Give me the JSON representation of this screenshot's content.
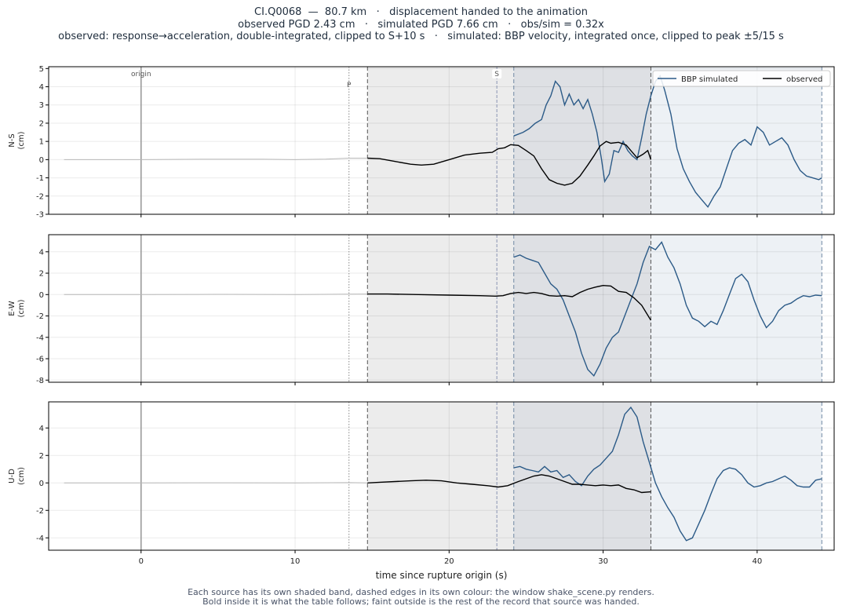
{
  "header": {
    "line1": "CI.Q0068  —  80.7 km   ·   displacement handed to the animation",
    "line2": "observed PGD 2.43 cm   ·   simulated PGD 7.66 cm   ·   obs/sim = 0.32x",
    "line3": "observed: response→acceleration, double-integrated, clipped to S+10 s   ·   simulated: BBP velocity, integrated once, clipped to peak ±5/15 s"
  },
  "footer": {
    "line1": "Each source has its own shaded band, dashed edges in its own colour: the window shake_scene.py renders.",
    "line2": "Bold inside it is what the table follows;   faint outside is the rest of the record that source was handed."
  },
  "colors": {
    "simulated": "#2b5a87",
    "observed": "#000000",
    "faint": "#b8b8b8",
    "obs_band": "#ececec",
    "sim_band": "#edf1f5",
    "overlap_band": "#dee0e4",
    "origin_line": "#9a9a9a"
  },
  "chart_data": {
    "type": "line",
    "xlabel": "time since rupture origin (s)",
    "xlim": [
      -6,
      45
    ],
    "xticks": [
      0,
      10,
      20,
      30,
      40
    ],
    "markers": [
      {
        "label": "origin",
        "t": 0
      },
      {
        "label": "P",
        "t": 13.5
      },
      {
        "label": "S",
        "t": 23.1
      }
    ],
    "observed_window": [
      14.7,
      33.1
    ],
    "simulated_window": [
      24.2,
      44.2
    ],
    "legend": {
      "position": "top-right",
      "entries": [
        "BBP simulated",
        "observed"
      ]
    },
    "grid": true,
    "panels": [
      {
        "ylabel": "N-S\n(cm)",
        "ylim": [
          -3,
          5.1
        ],
        "yticks": [
          -3,
          -2,
          -1,
          0,
          1,
          2,
          3,
          4,
          5
        ],
        "observed": [
          [
            -5,
            0
          ],
          [
            0,
            0
          ],
          [
            4,
            0.02
          ],
          [
            8,
            0.02
          ],
          [
            10,
            0
          ],
          [
            12,
            0.03
          ],
          [
            13.5,
            0.08
          ],
          [
            14.7,
            0.08
          ],
          [
            15.5,
            0.05
          ],
          [
            16.5,
            -0.1
          ],
          [
            17.5,
            -0.25
          ],
          [
            18.2,
            -0.3
          ],
          [
            19,
            -0.25
          ],
          [
            20,
            0
          ],
          [
            21,
            0.25
          ],
          [
            22,
            0.35
          ],
          [
            22.8,
            0.4
          ],
          [
            23.2,
            0.6
          ],
          [
            23.6,
            0.65
          ],
          [
            24,
            0.82
          ],
          [
            24.5,
            0.78
          ],
          [
            25,
            0.5
          ],
          [
            25.5,
            0.2
          ],
          [
            26,
            -0.5
          ],
          [
            26.5,
            -1.1
          ],
          [
            27,
            -1.3
          ],
          [
            27.5,
            -1.4
          ],
          [
            28,
            -1.3
          ],
          [
            28.5,
            -0.9
          ],
          [
            29,
            -0.3
          ],
          [
            29.4,
            0.2
          ],
          [
            29.8,
            0.75
          ],
          [
            30.2,
            1.0
          ],
          [
            30.5,
            0.9
          ],
          [
            31,
            0.95
          ],
          [
            31.5,
            0.8
          ],
          [
            31.8,
            0.5
          ],
          [
            32.2,
            0.1
          ],
          [
            32.6,
            0.3
          ],
          [
            32.9,
            0.5
          ],
          [
            33.1,
            0.0
          ]
        ],
        "simulated": [
          [
            24.2,
            1.3
          ],
          [
            24.8,
            1.5
          ],
          [
            25.2,
            1.7
          ],
          [
            25.6,
            2.0
          ],
          [
            26,
            2.2
          ],
          [
            26.3,
            3.0
          ],
          [
            26.6,
            3.5
          ],
          [
            26.9,
            4.3
          ],
          [
            27.2,
            4.0
          ],
          [
            27.5,
            3.0
          ],
          [
            27.8,
            3.6
          ],
          [
            28.1,
            3.0
          ],
          [
            28.4,
            3.3
          ],
          [
            28.7,
            2.8
          ],
          [
            29.0,
            3.3
          ],
          [
            29.3,
            2.5
          ],
          [
            29.6,
            1.5
          ],
          [
            29.9,
            0.0
          ],
          [
            30.1,
            -1.2
          ],
          [
            30.4,
            -0.8
          ],
          [
            30.7,
            0.5
          ],
          [
            31.0,
            0.4
          ],
          [
            31.3,
            1.0
          ],
          [
            31.6,
            0.5
          ],
          [
            31.9,
            0.2
          ],
          [
            32.2,
            0.0
          ],
          [
            32.5,
            1.2
          ],
          [
            32.8,
            2.5
          ],
          [
            33.1,
            3.5
          ],
          [
            33.4,
            4.3
          ],
          [
            33.7,
            4.6
          ],
          [
            34.0,
            3.8
          ],
          [
            34.4,
            2.5
          ],
          [
            34.8,
            0.6
          ],
          [
            35.2,
            -0.5
          ],
          [
            35.6,
            -1.2
          ],
          [
            36.0,
            -1.8
          ],
          [
            36.4,
            -2.2
          ],
          [
            36.8,
            -2.6
          ],
          [
            37.2,
            -2.0
          ],
          [
            37.6,
            -1.5
          ],
          [
            38.0,
            -0.5
          ],
          [
            38.4,
            0.5
          ],
          [
            38.8,
            0.9
          ],
          [
            39.2,
            1.1
          ],
          [
            39.6,
            0.8
          ],
          [
            40.0,
            1.8
          ],
          [
            40.4,
            1.5
          ],
          [
            40.8,
            0.8
          ],
          [
            41.2,
            1.0
          ],
          [
            41.6,
            1.2
          ],
          [
            42.0,
            0.8
          ],
          [
            42.4,
            0.0
          ],
          [
            42.8,
            -0.6
          ],
          [
            43.2,
            -0.9
          ],
          [
            43.6,
            -1.0
          ],
          [
            44.0,
            -1.1
          ],
          [
            44.2,
            -1.0
          ]
        ]
      },
      {
        "ylabel": "E-W\n(cm)",
        "ylim": [
          -8.2,
          5.6
        ],
        "yticks": [
          -8,
          -6,
          -4,
          -2,
          0,
          2,
          4
        ],
        "observed": [
          [
            -5,
            0
          ],
          [
            0,
            0
          ],
          [
            5,
            0.02
          ],
          [
            10,
            0
          ],
          [
            13.5,
            0.04
          ],
          [
            14.7,
            0.05
          ],
          [
            16,
            0.05
          ],
          [
            18,
            0.0
          ],
          [
            20,
            -0.05
          ],
          [
            22,
            -0.1
          ],
          [
            23,
            -0.15
          ],
          [
            23.5,
            -0.1
          ],
          [
            24,
            0.1
          ],
          [
            24.5,
            0.2
          ],
          [
            25,
            0.1
          ],
          [
            25.5,
            0.2
          ],
          [
            26,
            0.1
          ],
          [
            26.5,
            -0.1
          ],
          [
            27,
            -0.15
          ],
          [
            27.5,
            -0.1
          ],
          [
            28,
            -0.2
          ],
          [
            28.5,
            0.2
          ],
          [
            29,
            0.5
          ],
          [
            29.5,
            0.7
          ],
          [
            30,
            0.85
          ],
          [
            30.5,
            0.8
          ],
          [
            31,
            0.3
          ],
          [
            31.5,
            0.2
          ],
          [
            32,
            -0.3
          ],
          [
            32.5,
            -1.0
          ],
          [
            33.1,
            -2.4
          ]
        ],
        "simulated": [
          [
            24.2,
            3.5
          ],
          [
            24.6,
            3.7
          ],
          [
            25,
            3.4
          ],
          [
            25.4,
            3.2
          ],
          [
            25.8,
            3.0
          ],
          [
            26.2,
            2.0
          ],
          [
            26.6,
            1.0
          ],
          [
            27.0,
            0.5
          ],
          [
            27.4,
            -0.5
          ],
          [
            27.8,
            -2.0
          ],
          [
            28.2,
            -3.5
          ],
          [
            28.6,
            -5.5
          ],
          [
            29.0,
            -7.0
          ],
          [
            29.4,
            -7.6
          ],
          [
            29.8,
            -6.5
          ],
          [
            30.2,
            -5.0
          ],
          [
            30.6,
            -4.0
          ],
          [
            31.0,
            -3.5
          ],
          [
            31.4,
            -2.0
          ],
          [
            31.8,
            -0.5
          ],
          [
            32.2,
            1.0
          ],
          [
            32.6,
            3.0
          ],
          [
            33.0,
            4.5
          ],
          [
            33.4,
            4.2
          ],
          [
            33.8,
            4.9
          ],
          [
            34.2,
            3.5
          ],
          [
            34.6,
            2.5
          ],
          [
            35.0,
            1.0
          ],
          [
            35.4,
            -1.0
          ],
          [
            35.8,
            -2.2
          ],
          [
            36.2,
            -2.5
          ],
          [
            36.6,
            -3.0
          ],
          [
            37.0,
            -2.5
          ],
          [
            37.4,
            -2.8
          ],
          [
            37.8,
            -1.5
          ],
          [
            38.2,
            0.0
          ],
          [
            38.6,
            1.5
          ],
          [
            39.0,
            1.9
          ],
          [
            39.4,
            1.2
          ],
          [
            39.8,
            -0.5
          ],
          [
            40.2,
            -2.0
          ],
          [
            40.6,
            -3.1
          ],
          [
            41.0,
            -2.5
          ],
          [
            41.4,
            -1.5
          ],
          [
            41.8,
            -1.0
          ],
          [
            42.2,
            -0.8
          ],
          [
            42.6,
            -0.4
          ],
          [
            43.0,
            -0.1
          ],
          [
            43.4,
            -0.2
          ],
          [
            43.8,
            -0.05
          ],
          [
            44.2,
            -0.1
          ]
        ]
      },
      {
        "ylabel": "U-D\n(cm)",
        "ylim": [
          -4.9,
          5.9
        ],
        "yticks": [
          -4,
          -2,
          0,
          2,
          4
        ],
        "observed": [
          [
            -5,
            0
          ],
          [
            0,
            0
          ],
          [
            5,
            0.01
          ],
          [
            10,
            0
          ],
          [
            13.5,
            0.02
          ],
          [
            14.7,
            0.0
          ],
          [
            15.5,
            0.05
          ],
          [
            16.5,
            0.1
          ],
          [
            17.5,
            0.15
          ],
          [
            18.5,
            0.2
          ],
          [
            19.5,
            0.15
          ],
          [
            20.5,
            0.0
          ],
          [
            21.5,
            -0.1
          ],
          [
            22.5,
            -0.2
          ],
          [
            23.2,
            -0.3
          ],
          [
            23.8,
            -0.2
          ],
          [
            24.5,
            0.1
          ],
          [
            25,
            0.3
          ],
          [
            25.5,
            0.5
          ],
          [
            26,
            0.6
          ],
          [
            26.5,
            0.5
          ],
          [
            27,
            0.3
          ],
          [
            27.5,
            0.1
          ],
          [
            28,
            -0.1
          ],
          [
            28.5,
            -0.1
          ],
          [
            29,
            -0.15
          ],
          [
            29.5,
            -0.2
          ],
          [
            30,
            -0.15
          ],
          [
            30.5,
            -0.2
          ],
          [
            31,
            -0.15
          ],
          [
            31.5,
            -0.4
          ],
          [
            32,
            -0.5
          ],
          [
            32.5,
            -0.7
          ],
          [
            33.1,
            -0.65
          ]
        ],
        "simulated": [
          [
            24.2,
            1.1
          ],
          [
            24.6,
            1.2
          ],
          [
            25.0,
            1.0
          ],
          [
            25.4,
            0.9
          ],
          [
            25.8,
            0.8
          ],
          [
            26.2,
            1.2
          ],
          [
            26.6,
            0.8
          ],
          [
            27.0,
            0.9
          ],
          [
            27.4,
            0.4
          ],
          [
            27.8,
            0.6
          ],
          [
            28.2,
            0.1
          ],
          [
            28.6,
            -0.2
          ],
          [
            29.0,
            0.5
          ],
          [
            29.4,
            1.0
          ],
          [
            29.8,
            1.3
          ],
          [
            30.2,
            1.8
          ],
          [
            30.6,
            2.3
          ],
          [
            31.0,
            3.5
          ],
          [
            31.4,
            5.0
          ],
          [
            31.8,
            5.5
          ],
          [
            32.2,
            4.8
          ],
          [
            32.6,
            3.0
          ],
          [
            33.0,
            1.5
          ],
          [
            33.4,
            0.0
          ],
          [
            33.8,
            -1.0
          ],
          [
            34.2,
            -1.8
          ],
          [
            34.6,
            -2.5
          ],
          [
            35.0,
            -3.5
          ],
          [
            35.4,
            -4.2
          ],
          [
            35.8,
            -4.0
          ],
          [
            36.2,
            -3.0
          ],
          [
            36.6,
            -2.0
          ],
          [
            37.0,
            -0.8
          ],
          [
            37.4,
            0.3
          ],
          [
            37.8,
            0.9
          ],
          [
            38.2,
            1.1
          ],
          [
            38.6,
            1.0
          ],
          [
            39.0,
            0.6
          ],
          [
            39.4,
            0.0
          ],
          [
            39.8,
            -0.3
          ],
          [
            40.2,
            -0.2
          ],
          [
            40.6,
            0.0
          ],
          [
            41.0,
            0.1
          ],
          [
            41.4,
            0.3
          ],
          [
            41.8,
            0.5
          ],
          [
            42.2,
            0.2
          ],
          [
            42.6,
            -0.2
          ],
          [
            43.0,
            -0.3
          ],
          [
            43.4,
            -0.3
          ],
          [
            43.8,
            0.2
          ],
          [
            44.2,
            0.3
          ]
        ]
      }
    ]
  }
}
